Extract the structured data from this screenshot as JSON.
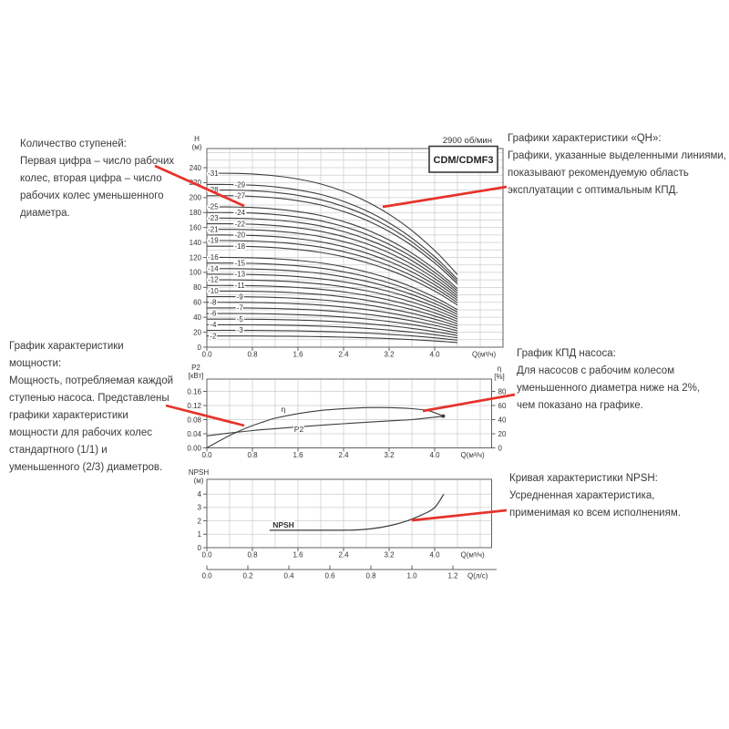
{
  "colors": {
    "red": "#e6332a",
    "curve": "#3d3d3d",
    "grid": "#cdcdcd",
    "frame": "#606060",
    "text": "#3b3b3b",
    "tick_text": "#333333"
  },
  "annotations": {
    "stages": {
      "lines": [
        "Количество ступеней:",
        "Первая цифра – число рабочих",
        "колес, вторая цифра – число",
        "рабочих колес уменьшенного",
        "диаметра."
      ]
    },
    "qh": {
      "lines": [
        "Графики характеристики «QH»:",
        "Графики, указанные выделенными линиями,",
        "показывают рекомендуемую область",
        "эксплуатации с оптимальным КПД."
      ]
    },
    "power": {
      "lines": [
        "График характеристики мощности:",
        "Мощность, потребляемая каждой",
        "ступенью насоса. Представлены",
        "графики характеристики",
        "мощности для рабочих колес",
        "стандартного (1/1) и",
        "уменьшенного (2/3) диаметров."
      ]
    },
    "efficiency": {
      "lines": [
        "График КПД насоса:",
        "Для насосов с рабочим колесом",
        "уменьшенного диаметра ниже на 2%,",
        "чем показано на графике."
      ]
    },
    "npsh": {
      "lines": [
        "Кривая характеристики NPSH:",
        "Усредненная характеристика,",
        "применимая ко всем исполнениям."
      ]
    }
  },
  "chart_data": [
    {
      "type": "line",
      "name": "QH curves",
      "title": "2900 об/мин",
      "model_box": "CDM/CDMF3",
      "ylabel_lines": [
        "H",
        "(м)"
      ],
      "xlabel": "Q(м³/ч)",
      "yticks": [
        0,
        20,
        40,
        60,
        80,
        100,
        120,
        140,
        160,
        180,
        200,
        220,
        240
      ],
      "xtick_labels": [
        "0.0",
        "0.8",
        "1.6",
        "2.4",
        "3.2",
        "4.0"
      ],
      "xlim": [
        0,
        5.2
      ],
      "ylim": [
        0,
        265
      ],
      "grid": "on",
      "stage_curves": {
        "stages": [
          2,
          3,
          4,
          5,
          6,
          7,
          8,
          9,
          10,
          11,
          12,
          13,
          14,
          15,
          16,
          18,
          19,
          20,
          21,
          22,
          23,
          24,
          25,
          27,
          28,
          29,
          31
        ],
        "q": [
          0,
          0.4,
          0.8,
          1.2,
          1.6,
          2.0,
          2.4,
          2.8,
          3.2,
          3.6,
          4.0,
          4.2,
          4.4
        ],
        "head_per_stage": [
          7.5,
          7.5,
          7.47,
          7.39,
          7.25,
          7.04,
          6.72,
          6.29,
          5.73,
          5.03,
          4.17,
          3.67,
          3.13
        ]
      }
    },
    {
      "type": "line",
      "name": "Power and efficiency",
      "ylabel_left_lines": [
        "P2",
        "[кВт]"
      ],
      "ylabel_right_lines": [
        "η",
        "[%]"
      ],
      "xlabel": "Q(м³/ч)",
      "yticks_left": [
        "0.00",
        "0.04",
        "0.08",
        "0.12",
        "0.16"
      ],
      "yticks_right": [
        0,
        20,
        40,
        60,
        80
      ],
      "xtick_labels": [
        "0.0",
        "0.8",
        "1.6",
        "2.4",
        "3.2",
        "4.0"
      ],
      "xlim": [
        0,
        5.0
      ],
      "ylim_left": [
        0,
        0.195
      ],
      "ylim_right": [
        0,
        97
      ],
      "grid": "on",
      "series": [
        {
          "name": "η",
          "axis": "right",
          "x": [
            0,
            0.2,
            0.4,
            0.6,
            0.8,
            1.0,
            1.2,
            1.6,
            2.0,
            2.4,
            2.8,
            3.2,
            3.6,
            3.9,
            4.15
          ],
          "y": [
            0,
            9,
            17.5,
            25,
            31.5,
            37,
            42,
            48.5,
            53,
            55.5,
            57,
            57,
            55.5,
            52.5,
            45
          ]
        },
        {
          "name": "P2",
          "axis": "left",
          "x": [
            0,
            0.4,
            0.8,
            1.2,
            1.6,
            2.0,
            2.4,
            2.8,
            3.2,
            3.6,
            4.0,
            4.15
          ],
          "y": [
            0.034,
            0.042,
            0.049,
            0.0545,
            0.0595,
            0.064,
            0.0685,
            0.0725,
            0.0765,
            0.08,
            0.087,
            0.089
          ]
        }
      ]
    },
    {
      "type": "line",
      "name": "NPSH curve",
      "ylabel_lines": [
        "NPSH",
        "(м)"
      ],
      "xlabel": "Q(м³/ч)",
      "x2label": "Q(л/с)",
      "yticks": [
        0,
        1,
        2,
        3,
        4
      ],
      "xtick_labels": [
        "0.0",
        "0.8",
        "1.6",
        "2.4",
        "3.2",
        "4.0"
      ],
      "x2tick_labels": [
        "0.0",
        "0.2",
        "0.4",
        "0.6",
        "0.8",
        "1.0",
        "1.2"
      ],
      "xlim": [
        0,
        5.0
      ],
      "ylim": [
        0,
        5.1
      ],
      "grid": "on",
      "series": [
        {
          "name": "NPSH",
          "x": [
            1.1,
            1.6,
            2.2,
            2.6,
            2.9,
            3.2,
            3.5,
            3.8,
            4.0,
            4.16
          ],
          "y": [
            1.3,
            1.3,
            1.3,
            1.32,
            1.42,
            1.63,
            1.98,
            2.5,
            3.0,
            4.0
          ]
        }
      ]
    }
  ]
}
